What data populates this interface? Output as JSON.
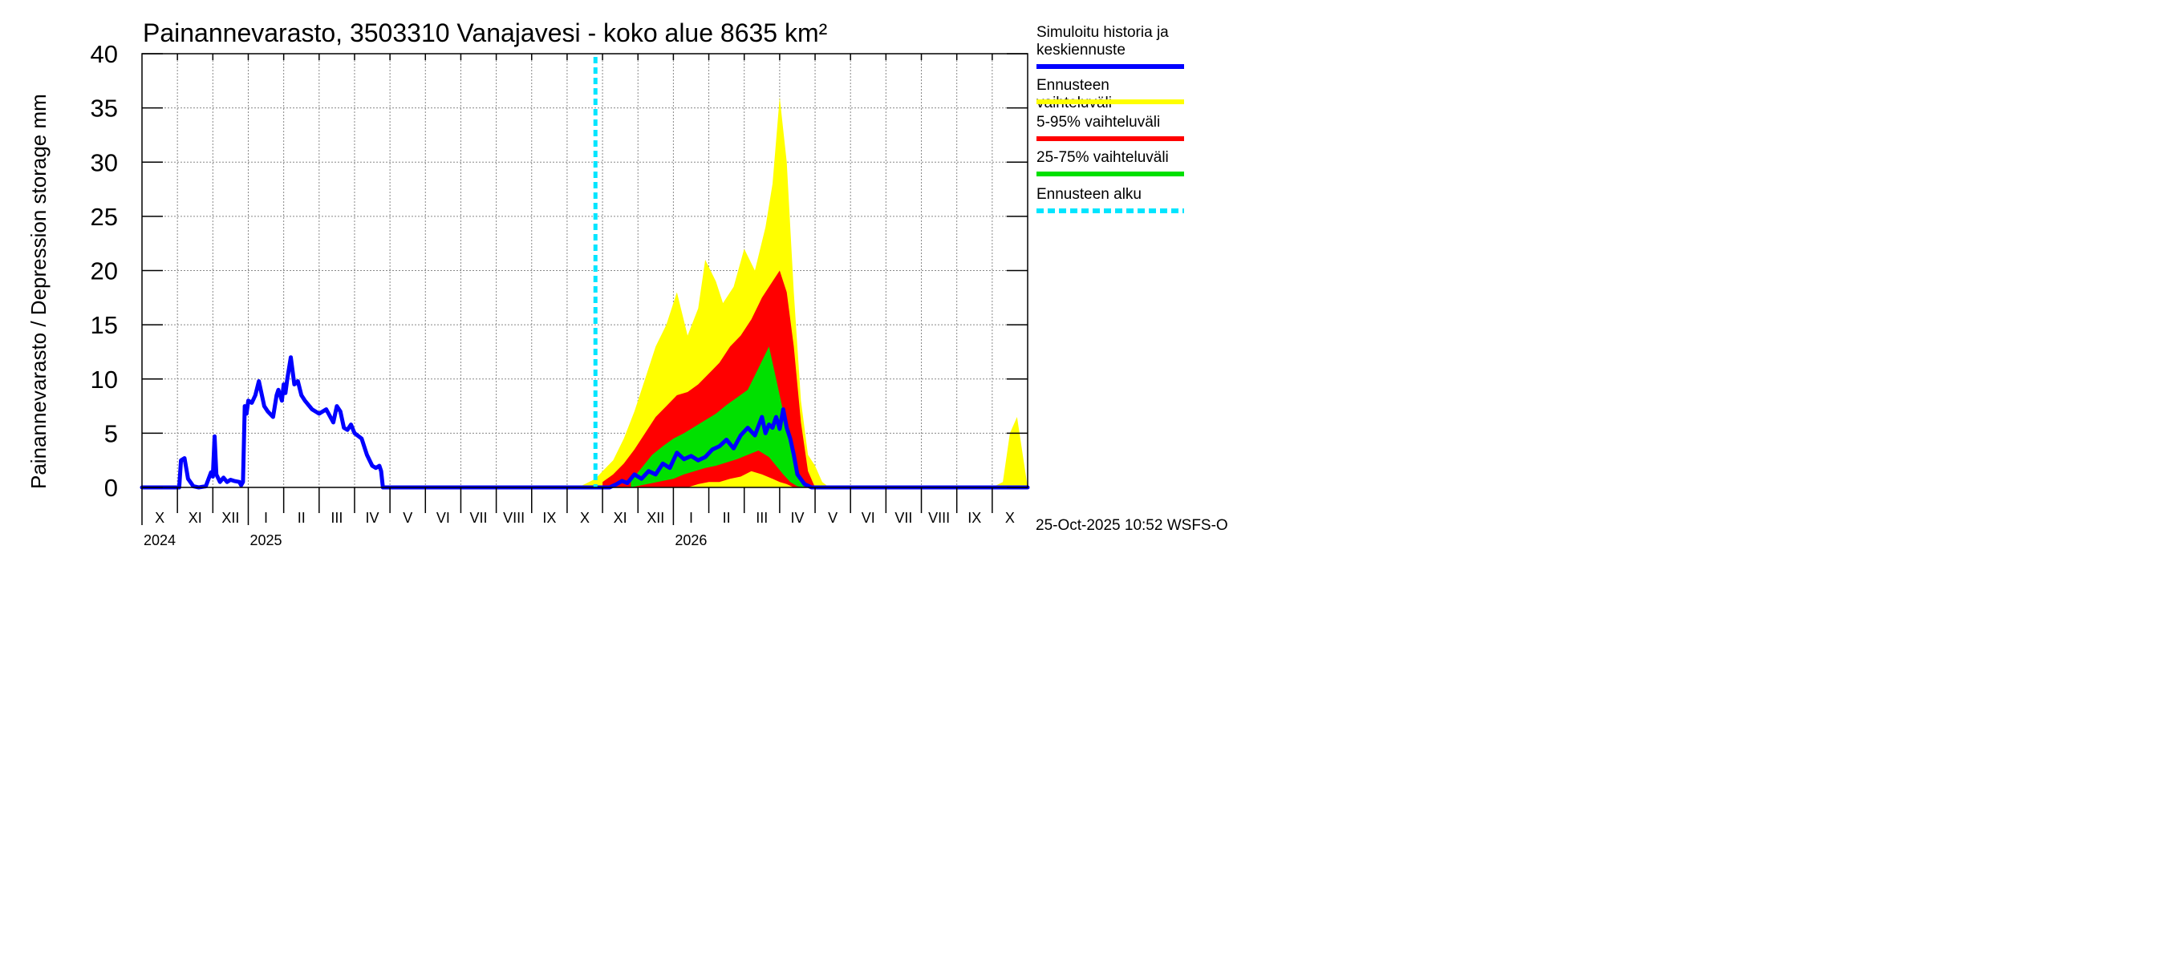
{
  "chart_data": {
    "type": "area",
    "title": "Painannevarasto, 3503310 Vanajavesi - koko alue 8635 km²",
    "ylabel": "Painannevarasto / Depression storage    mm",
    "ylim": [
      0,
      40
    ],
    "yticks": [
      0,
      5,
      10,
      15,
      20,
      25,
      30,
      35,
      40
    ],
    "ytick_labels": [
      "0",
      "5",
      "10",
      "15",
      "20",
      "25",
      "30",
      "35",
      "40"
    ],
    "x_unit": "months since start of Oct 2024",
    "xlim": [
      0,
      25
    ],
    "months": [
      {
        "label": "X",
        "start": 0
      },
      {
        "label": "XI",
        "start": 1
      },
      {
        "label": "XII",
        "start": 2
      },
      {
        "label": "I",
        "start": 3
      },
      {
        "label": "II",
        "start": 4
      },
      {
        "label": "III",
        "start": 5
      },
      {
        "label": "IV",
        "start": 6
      },
      {
        "label": "V",
        "start": 7
      },
      {
        "label": "VI",
        "start": 8
      },
      {
        "label": "VII",
        "start": 9
      },
      {
        "label": "VIII",
        "start": 10
      },
      {
        "label": "IX",
        "start": 11
      },
      {
        "label": "X",
        "start": 12
      },
      {
        "label": "XI",
        "start": 13
      },
      {
        "label": "XII",
        "start": 14
      },
      {
        "label": "I",
        "start": 15
      },
      {
        "label": "II",
        "start": 16
      },
      {
        "label": "III",
        "start": 17
      },
      {
        "label": "IV",
        "start": 18
      },
      {
        "label": "V",
        "start": 19
      },
      {
        "label": "VI",
        "start": 20
      },
      {
        "label": "VII",
        "start": 21
      },
      {
        "label": "VIII",
        "start": 22
      },
      {
        "label": "IX",
        "start": 23
      },
      {
        "label": "X",
        "start": 24
      }
    ],
    "years": [
      {
        "label": "2024",
        "at": 0
      },
      {
        "label": "2025",
        "at": 3
      },
      {
        "label": "2026",
        "at": 15
      }
    ],
    "forecast_start": 12.8,
    "series": [
      {
        "name": "Ennusteen vaihteluväli",
        "color": "#ffff00",
        "kind": "band",
        "x": [
          12.3,
          12.5,
          12.8,
          13.0,
          13.3,
          13.6,
          13.9,
          14.2,
          14.5,
          14.8,
          15.1,
          15.4,
          15.7,
          15.9,
          16.2,
          16.4,
          16.7,
          17.0,
          17.3,
          17.6,
          17.8,
          18.0,
          18.2,
          18.4,
          18.6,
          18.8,
          19.0,
          19.2,
          19.4,
          24.0,
          24.3,
          24.5,
          24.7,
          25.0
        ],
        "lower": [
          0,
          0,
          0,
          0,
          0,
          0,
          0,
          0,
          0,
          0,
          0,
          0,
          0,
          0,
          0,
          0,
          0,
          0,
          0,
          0,
          0,
          0,
          0,
          0,
          0,
          0,
          0,
          0,
          0,
          0,
          0,
          0,
          0,
          0
        ],
        "upper": [
          0,
          0.3,
          0.8,
          1.5,
          2.5,
          4.5,
          7.0,
          10.0,
          13.0,
          15.0,
          18.0,
          14.0,
          16.5,
          21.0,
          19.0,
          17.0,
          18.5,
          22.0,
          20.0,
          24.0,
          28.0,
          36.0,
          30.0,
          18.0,
          8.0,
          3.0,
          2.0,
          0.5,
          0,
          0,
          0.5,
          5.0,
          6.5,
          0
        ]
      },
      {
        "name": "5-95% vaihteluväli",
        "color": "#ff0000",
        "kind": "band",
        "x": [
          13.0,
          13.3,
          13.6,
          13.9,
          14.2,
          14.5,
          14.8,
          15.1,
          15.4,
          15.7,
          16.0,
          16.3,
          16.6,
          16.9,
          17.2,
          17.5,
          17.8,
          18.0,
          18.2,
          18.4,
          18.6,
          18.8,
          19.0
        ],
        "lower": [
          0,
          0,
          0,
          0,
          0,
          0,
          0,
          0,
          0,
          0.3,
          0.5,
          0.5,
          0.8,
          1.0,
          1.5,
          1.2,
          0.8,
          0.5,
          0.3,
          0,
          0,
          0,
          0
        ],
        "upper": [
          0.5,
          1.2,
          2.2,
          3.5,
          5.0,
          6.5,
          7.5,
          8.5,
          8.8,
          9.5,
          10.5,
          11.5,
          13.0,
          14.0,
          15.5,
          17.5,
          19.0,
          20.0,
          18.0,
          13.0,
          6.0,
          1.5,
          0
        ]
      },
      {
        "name": "25-75% vaihteluväli",
        "color": "#00e000",
        "kind": "band",
        "x": [
          13.8,
          14.1,
          14.4,
          14.7,
          15.0,
          15.3,
          15.6,
          15.9,
          16.2,
          16.5,
          16.8,
          17.1,
          17.4,
          17.7,
          17.9,
          18.1,
          18.3,
          18.5,
          18.7
        ],
        "lower": [
          0,
          0.2,
          0.4,
          0.6,
          0.8,
          1.2,
          1.5,
          1.8,
          2.0,
          2.3,
          2.6,
          3.0,
          3.4,
          2.8,
          2.0,
          1.2,
          0.5,
          0.1,
          0
        ],
        "upper": [
          0.6,
          1.8,
          3.0,
          3.8,
          4.5,
          5.0,
          5.6,
          6.2,
          6.8,
          7.6,
          8.3,
          9.0,
          11.0,
          13.0,
          10.0,
          7.0,
          4.0,
          1.5,
          0
        ]
      },
      {
        "name": "Simuloitu historia ja keskiennuste",
        "color": "#0000ff",
        "kind": "line",
        "x": [
          0,
          1.05,
          1.1,
          1.2,
          1.3,
          1.45,
          1.6,
          1.8,
          1.95,
          2.0,
          2.05,
          2.1,
          2.2,
          2.3,
          2.4,
          2.5,
          2.6,
          2.75,
          2.8,
          2.85,
          2.9,
          2.95,
          3.0,
          3.1,
          3.2,
          3.3,
          3.45,
          3.55,
          3.7,
          3.8,
          3.85,
          3.9,
          3.95,
          4.0,
          4.05,
          4.1,
          4.2,
          4.3,
          4.4,
          4.5,
          4.6,
          4.8,
          5.0,
          5.2,
          5.4,
          5.5,
          5.6,
          5.7,
          5.8,
          5.9,
          6.0,
          6.2,
          6.35,
          6.5,
          6.6,
          6.7,
          6.75,
          6.8,
          6.95,
          12.9,
          13.2,
          13.4,
          13.55,
          13.7,
          13.9,
          14.1,
          14.3,
          14.5,
          14.7,
          14.9,
          15.1,
          15.3,
          15.5,
          15.7,
          15.9,
          16.1,
          16.3,
          16.5,
          16.7,
          16.9,
          17.1,
          17.3,
          17.5,
          17.6,
          17.7,
          17.8,
          17.9,
          18.0,
          18.1,
          18.2,
          18.3,
          18.4,
          18.5,
          18.7,
          18.9,
          25.0
        ],
        "y": [
          0,
          0,
          2.5,
          2.7,
          0.8,
          0.1,
          0,
          0.1,
          1.4,
          1.0,
          4.7,
          1.2,
          0.5,
          0.9,
          0.5,
          0.7,
          0.6,
          0.5,
          0.2,
          0.5,
          7.5,
          6.8,
          8.0,
          7.8,
          8.5,
          9.8,
          7.5,
          7.0,
          6.5,
          8.5,
          9.0,
          8.5,
          8.0,
          9.5,
          8.7,
          10.0,
          12.0,
          9.5,
          9.8,
          8.5,
          8.0,
          7.2,
          6.8,
          7.2,
          6.0,
          7.5,
          7.0,
          5.5,
          5.3,
          5.8,
          5.0,
          4.5,
          3.0,
          2.0,
          1.8,
          2.0,
          1.5,
          0,
          0,
          0,
          0,
          0.3,
          0.6,
          0.4,
          1.2,
          0.8,
          1.5,
          1.2,
          2.2,
          1.8,
          3.2,
          2.6,
          2.9,
          2.5,
          2.8,
          3.5,
          3.8,
          4.4,
          3.6,
          4.8,
          5.5,
          4.8,
          6.5,
          5.0,
          5.8,
          5.5,
          6.5,
          5.4,
          7.2,
          5.5,
          4.5,
          3.0,
          1.2,
          0.3,
          0,
          0
        ]
      },
      {
        "name": "Ennusteen alku",
        "color": "#00e5ff",
        "kind": "vline",
        "x": 12.8
      }
    ],
    "legend": [
      {
        "label": "Simuloitu historia ja keskiennuste",
        "color": "#0000ff",
        "style": "solid"
      },
      {
        "label": "Ennusteen vaihteluväli",
        "color": "#ffff00",
        "style": "solid"
      },
      {
        "label": "5-95% vaihteluväli",
        "color": "#ff0000",
        "style": "solid"
      },
      {
        "label": "25-75% vaihteluväli",
        "color": "#00e000",
        "style": "solid"
      },
      {
        "label": "Ennusteen alku",
        "color": "#00e5ff",
        "style": "dashed"
      }
    ],
    "legend_position": "right",
    "grid": true
  },
  "footer": "25-Oct-2025 10:52 WSFS-O"
}
